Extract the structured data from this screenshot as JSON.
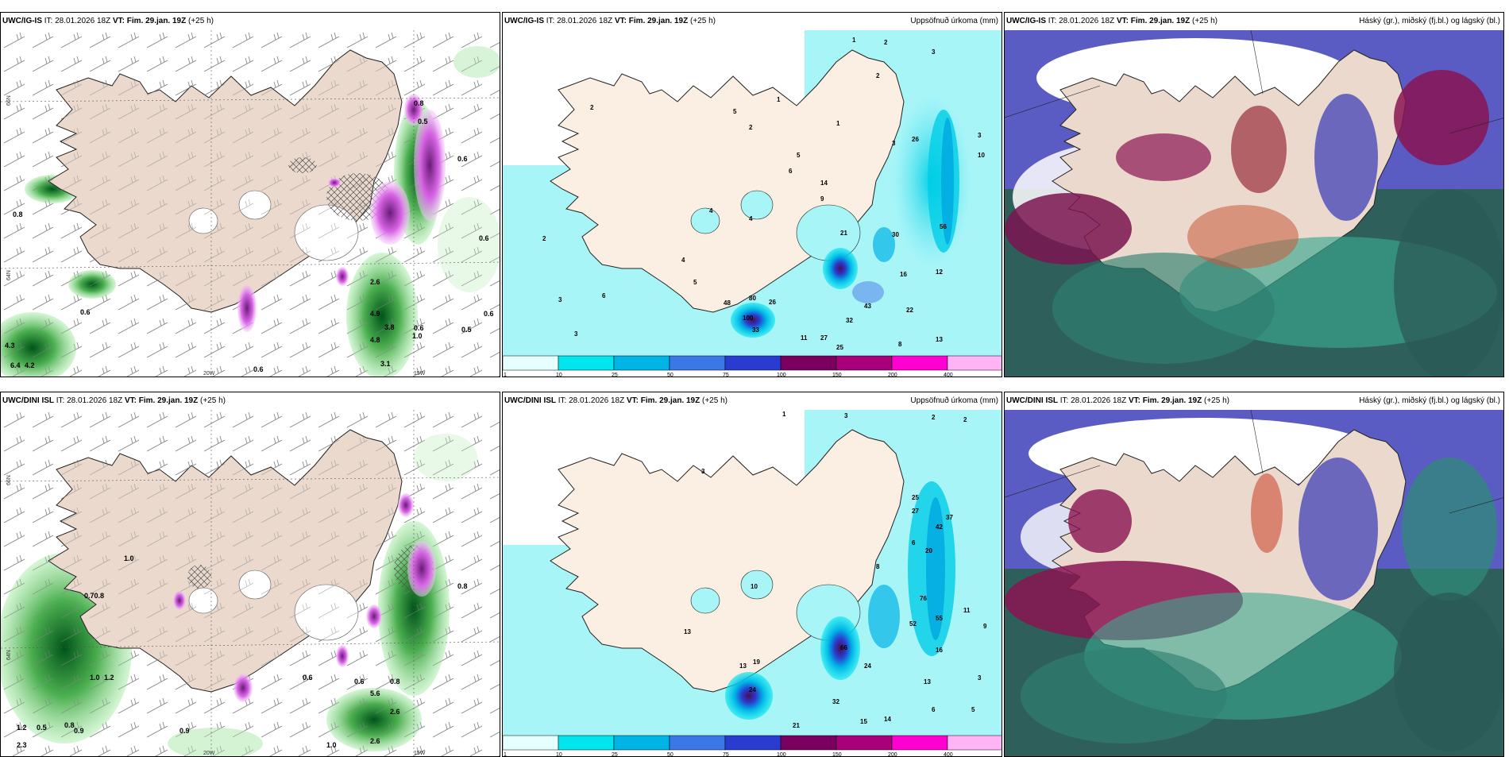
{
  "rows": [
    {
      "model_bold": "UWC/IG-IS",
      "it_label": "IT:",
      "it_value": "28.01.2026 18Z",
      "vt_label": "VT:",
      "vt_value": "Fim. 29.jan. 19Z",
      "lead": "(+25 h)"
    },
    {
      "model_bold": "UWC/DINI ISL",
      "it_label": "IT:",
      "it_value": "28.01.2026 18Z",
      "vt_label": "VT:",
      "vt_value": "Fim. 29.jan. 19Z",
      "lead": "(+25 h)"
    }
  ],
  "precip_title": "Uppsöfnuð úrkoma (mm)",
  "cloud_title": "Háský (gr.), miðský (fj.bl.) og lágský (bl.)",
  "colorbar": {
    "ticks": [
      "1",
      "10",
      "25",
      "50",
      "75",
      "100",
      "150",
      "200",
      "400"
    ],
    "colors": [
      "#e6ffff",
      "#00e5ee",
      "#00b4e6",
      "#3a78e6",
      "#2a3ccf",
      "#7a0060",
      "#a8007a",
      "#ff00d0",
      "#ffb4f5"
    ]
  },
  "axis_labels": {
    "lat_66": "66N",
    "lat_64": "64N",
    "lon_20": "20W",
    "lon_15": "15W"
  },
  "precip_top_labels": [
    "1",
    "2",
    "3",
    "2",
    "1",
    "4",
    "1",
    "2",
    "3",
    "5",
    "6",
    "9",
    "14",
    "5",
    "2",
    "21",
    "48",
    "33",
    "26",
    "43",
    "32",
    "27",
    "25",
    "26",
    "22",
    "13",
    "12",
    "8",
    "11",
    "80",
    "100",
    "56",
    "30",
    "16",
    "4",
    "2",
    "4",
    "6",
    "10",
    "3",
    "3",
    "5",
    "3"
  ],
  "precip_bottom_labels": [
    "1",
    "2",
    "3",
    "2",
    "3",
    "10",
    "13",
    "24",
    "19",
    "13",
    "66",
    "32",
    "15",
    "14",
    "52",
    "55",
    "76",
    "42",
    "37",
    "27",
    "25",
    "6",
    "20",
    "21",
    "24",
    "8",
    "16",
    "13",
    "5",
    "6",
    "9",
    "11",
    "3"
  ],
  "snow_top_labels": [
    "0.8",
    "0.5",
    "0.6",
    "0.6",
    "0.5",
    "0.6",
    "0.8",
    "4.9",
    "3.8",
    "4.8",
    "4.3",
    "6.4",
    "4.2",
    "2.6",
    "1.0",
    "3.1",
    "0.6",
    "0.6",
    "0.6"
  ],
  "snow_bottom_labels": [
    "0.8",
    "0.6",
    "0.70.8",
    "1.0",
    "2.6",
    "0.9",
    "1.0",
    "0.5",
    "0.8",
    "1.2",
    "5.6",
    "2.6",
    "1.0",
    "0.8",
    "0.6",
    "0.9",
    "2.3",
    "1.2"
  ]
}
